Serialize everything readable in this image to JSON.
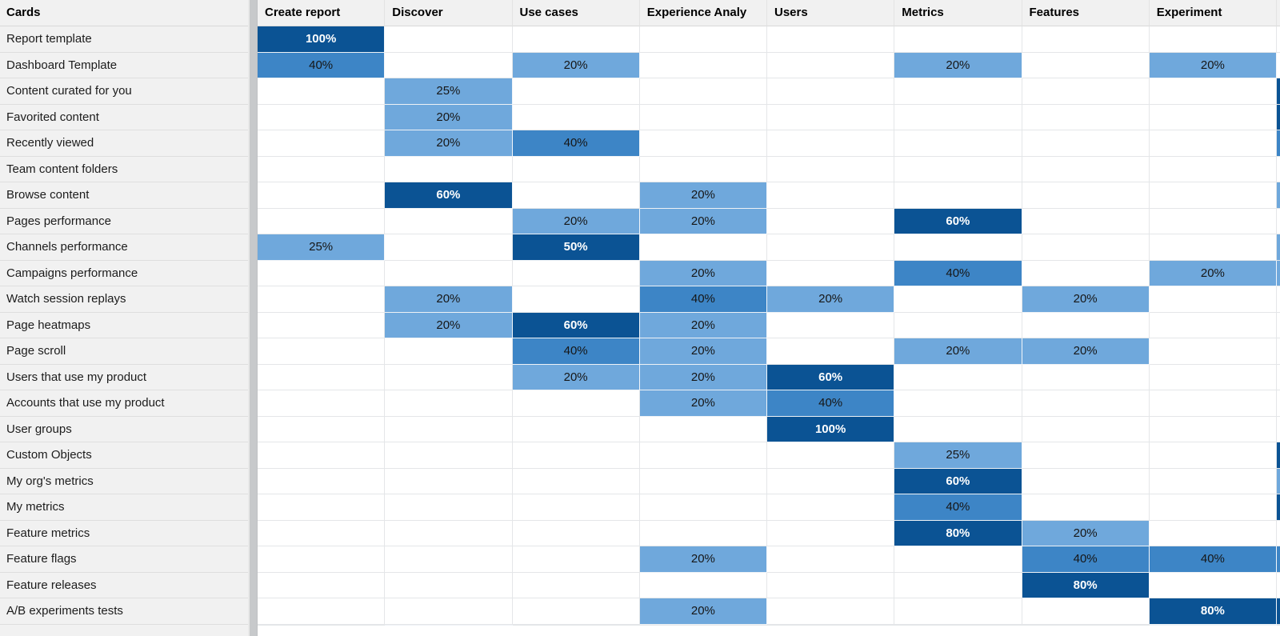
{
  "palette": {
    "dark": "#0b5394",
    "medium": "#3d85c6",
    "light": "#6fa8dc",
    "header_bg": "#f1f1f1",
    "label_bg": "#f1f1f1",
    "divider_gray": "#c7c9cb",
    "dark_cell_text": "#ffffff",
    "light_cell_text": "#161616"
  },
  "table": {
    "corner": "Cards",
    "columns": [
      "Create report",
      "Discover",
      "Use cases",
      "Experience Analy",
      "Users",
      "Metrics",
      "Features",
      "Experiment"
    ],
    "rows": [
      {
        "label": "Report template",
        "cells": [
          {
            "v": "100%",
            "l": "dark"
          },
          null,
          null,
          null,
          null,
          null,
          null,
          null
        ],
        "edge": null
      },
      {
        "label": "Dashboard Template",
        "cells": [
          {
            "v": "40%",
            "l": "medium"
          },
          null,
          {
            "v": "20%",
            "l": "light"
          },
          null,
          null,
          {
            "v": "20%",
            "l": "light"
          },
          null,
          {
            "v": "20%",
            "l": "light"
          }
        ],
        "edge": null
      },
      {
        "label": "Content curated for you",
        "cells": [
          null,
          {
            "v": "25%",
            "l": "light"
          },
          null,
          null,
          null,
          null,
          null,
          null
        ],
        "edge": "dark"
      },
      {
        "label": "Favorited content",
        "cells": [
          null,
          {
            "v": "20%",
            "l": "light"
          },
          null,
          null,
          null,
          null,
          null,
          null
        ],
        "edge": "dark"
      },
      {
        "label": "Recently viewed",
        "cells": [
          null,
          {
            "v": "20%",
            "l": "light"
          },
          {
            "v": "40%",
            "l": "medium"
          },
          null,
          null,
          null,
          null,
          null
        ],
        "edge": "medium"
      },
      {
        "label": "Team content folders",
        "cells": [
          null,
          null,
          null,
          null,
          null,
          null,
          null,
          null
        ],
        "edge": null
      },
      {
        "label": "Browse content",
        "cells": [
          null,
          {
            "v": "60%",
            "l": "dark"
          },
          null,
          {
            "v": "20%",
            "l": "light"
          },
          null,
          null,
          null,
          null
        ],
        "edge": "light"
      },
      {
        "label": "Pages performance",
        "cells": [
          null,
          null,
          {
            "v": "20%",
            "l": "light"
          },
          {
            "v": "20%",
            "l": "light"
          },
          null,
          {
            "v": "60%",
            "l": "dark"
          },
          null,
          null
        ],
        "edge": null
      },
      {
        "label": "Channels performance",
        "cells": [
          {
            "v": "25%",
            "l": "light"
          },
          null,
          {
            "v": "50%",
            "l": "dark"
          },
          null,
          null,
          null,
          null,
          null
        ],
        "edge": "light"
      },
      {
        "label": "Campaigns performance",
        "cells": [
          null,
          null,
          null,
          {
            "v": "20%",
            "l": "light"
          },
          null,
          {
            "v": "40%",
            "l": "medium"
          },
          null,
          {
            "v": "20%",
            "l": "light"
          }
        ],
        "edge": "light"
      },
      {
        "label": "Watch session replays",
        "cells": [
          null,
          {
            "v": "20%",
            "l": "light"
          },
          null,
          {
            "v": "40%",
            "l": "medium"
          },
          {
            "v": "20%",
            "l": "light"
          },
          null,
          {
            "v": "20%",
            "l": "light"
          },
          null
        ],
        "edge": null
      },
      {
        "label": "Page heatmaps",
        "cells": [
          null,
          {
            "v": "20%",
            "l": "light"
          },
          {
            "v": "60%",
            "l": "dark"
          },
          {
            "v": "20%",
            "l": "light"
          },
          null,
          null,
          null,
          null
        ],
        "edge": null
      },
      {
        "label": "Page scroll",
        "cells": [
          null,
          null,
          {
            "v": "40%",
            "l": "medium"
          },
          {
            "v": "20%",
            "l": "light"
          },
          null,
          {
            "v": "20%",
            "l": "light"
          },
          {
            "v": "20%",
            "l": "light"
          },
          null
        ],
        "edge": null
      },
      {
        "label": "Users that use my product",
        "cells": [
          null,
          null,
          {
            "v": "20%",
            "l": "light"
          },
          {
            "v": "20%",
            "l": "light"
          },
          {
            "v": "60%",
            "l": "dark"
          },
          null,
          null,
          null
        ],
        "edge": null
      },
      {
        "label": "Accounts that use my product",
        "cells": [
          null,
          null,
          null,
          {
            "v": "20%",
            "l": "light"
          },
          {
            "v": "40%",
            "l": "medium"
          },
          null,
          null,
          null
        ],
        "edge": null
      },
      {
        "label": "User groups",
        "cells": [
          null,
          null,
          null,
          null,
          {
            "v": "100%",
            "l": "dark"
          },
          null,
          null,
          null
        ],
        "edge": null
      },
      {
        "label": "Custom Objects",
        "cells": [
          null,
          null,
          null,
          null,
          null,
          {
            "v": "25%",
            "l": "light"
          },
          null,
          null
        ],
        "edge": "dark"
      },
      {
        "label": "My org's metrics",
        "cells": [
          null,
          null,
          null,
          null,
          null,
          {
            "v": "60%",
            "l": "dark"
          },
          null,
          null
        ],
        "edge": "light"
      },
      {
        "label": "My metrics",
        "cells": [
          null,
          null,
          null,
          null,
          null,
          {
            "v": "40%",
            "l": "medium"
          },
          null,
          null
        ],
        "edge": "dark"
      },
      {
        "label": "Feature metrics",
        "cells": [
          null,
          null,
          null,
          null,
          null,
          {
            "v": "80%",
            "l": "dark"
          },
          {
            "v": "20%",
            "l": "light"
          },
          null
        ],
        "edge": null
      },
      {
        "label": "Feature flags",
        "cells": [
          null,
          null,
          null,
          {
            "v": "20%",
            "l": "light"
          },
          null,
          null,
          {
            "v": "40%",
            "l": "medium"
          },
          {
            "v": "40%",
            "l": "medium"
          }
        ],
        "edge": "medium"
      },
      {
        "label": "Feature releases",
        "cells": [
          null,
          null,
          null,
          null,
          null,
          null,
          {
            "v": "80%",
            "l": "dark"
          },
          null
        ],
        "edge": null
      },
      {
        "label": "A/B experiments tests",
        "cells": [
          null,
          null,
          null,
          {
            "v": "20%",
            "l": "light"
          },
          null,
          null,
          null,
          {
            "v": "80%",
            "l": "dark"
          }
        ],
        "edge": "dark"
      }
    ],
    "partial_row_levels": [
      null,
      "medium",
      null,
      null,
      null,
      null,
      null,
      "dark"
    ],
    "partial_row_edge": "dark"
  }
}
